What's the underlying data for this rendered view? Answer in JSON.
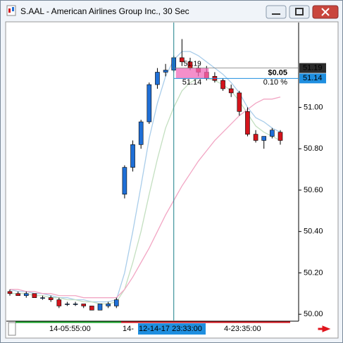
{
  "window": {
    "title": "S.AAL - American Airlines Group Inc., 30 Sec"
  },
  "chart_data": {
    "type": "candlestick",
    "ylim": [
      49.97,
      51.41
    ],
    "yticks": [
      {
        "value": 50,
        "label": "50.00"
      },
      {
        "value": 50.2,
        "label": "50.20"
      },
      {
        "value": 50.4,
        "label": "50.40"
      },
      {
        "value": 50.6,
        "label": "50.60"
      },
      {
        "value": 50.8,
        "label": "50.80"
      },
      {
        "value": 51,
        "label": "51.00"
      }
    ],
    "up_color": "#1f6fd6",
    "down_color": "#d4141c",
    "open": [
      50.11,
      50.1,
      50.09,
      50.1,
      50.08,
      50.08,
      50.07,
      50.05,
      50.05,
      50.05,
      50.04,
      50.02,
      50.04,
      50.04,
      50.58,
      50.71,
      50.82,
      50.93,
      51.11,
      51.17,
      51.18,
      51.24,
      51.22,
      51.19,
      51.17,
      51.15,
      51.13,
      51.09,
      51.07,
      50.98,
      50.87,
      50.84,
      50.86,
      50.88
    ],
    "high": [
      50.12,
      50.11,
      50.11,
      50.1,
      50.09,
      50.09,
      50.08,
      50.06,
      50.06,
      50.05,
      50.04,
      50.05,
      50.06,
      50.08,
      50.72,
      50.84,
      50.94,
      51.12,
      51.19,
      51.21,
      51.25,
      51.33,
      51.24,
      51.2,
      51.2,
      51.17,
      51.14,
      51.11,
      51.08,
      51.0,
      50.89,
      50.86,
      50.9,
      50.89
    ],
    "low": [
      50.09,
      50.09,
      50.08,
      50.08,
      50.07,
      50.06,
      50.03,
      50.04,
      50.04,
      50.03,
      50.02,
      50.02,
      50.03,
      50.03,
      50.56,
      50.69,
      50.8,
      50.92,
      51.09,
      51.15,
      51.17,
      51.2,
      51.18,
      51.15,
      51.13,
      51.12,
      51.08,
      51.05,
      50.96,
      50.86,
      50.83,
      50.8,
      50.85,
      50.82
    ],
    "close": [
      50.1,
      50.09,
      50.1,
      50.08,
      50.08,
      50.07,
      50.04,
      50.05,
      50.05,
      50.04,
      50.02,
      50.05,
      50.05,
      50.07,
      50.71,
      50.82,
      50.93,
      51.11,
      51.17,
      51.18,
      51.24,
      51.22,
      51.19,
      51.17,
      51.14,
      51.13,
      51.09,
      51.07,
      50.98,
      50.87,
      50.84,
      50.86,
      50.89,
      50.84
    ],
    "overlays": [
      {
        "color": "#a9cdea",
        "values": [
          50.12,
          50.11,
          50.11,
          50.1,
          50.1,
          50.09,
          50.08,
          50.08,
          50.07,
          50.07,
          50.06,
          50.06,
          50.06,
          50.07,
          50.2,
          50.4,
          50.62,
          50.85,
          51.02,
          51.15,
          51.23,
          51.27,
          51.27,
          51.25,
          51.22,
          51.19,
          51.16,
          51.12,
          51.07,
          51.0,
          50.95,
          50.93,
          50.9,
          50.88
        ]
      },
      {
        "color": "#c3dfc0",
        "values": [
          50.1,
          50.1,
          50.1,
          50.09,
          50.09,
          50.08,
          50.08,
          50.07,
          50.07,
          50.06,
          50.06,
          50.05,
          50.05,
          50.06,
          50.12,
          50.25,
          50.4,
          50.58,
          50.75,
          50.9,
          51.0,
          51.08,
          51.12,
          51.14,
          51.14,
          51.13,
          51.11,
          51.08,
          51.03,
          50.97,
          50.91,
          50.88,
          50.86,
          50.84
        ]
      },
      {
        "color": "#f2a6c4",
        "values": [
          50.12,
          50.12,
          50.11,
          50.11,
          50.1,
          50.1,
          50.09,
          50.09,
          50.09,
          50.08,
          50.08,
          50.08,
          50.08,
          50.08,
          50.12,
          50.18,
          50.25,
          50.32,
          50.4,
          50.48,
          50.55,
          50.62,
          50.68,
          50.74,
          50.79,
          50.84,
          50.88,
          50.92,
          50.96,
          50.99,
          51.02,
          51.04,
          51.04,
          51.05
        ]
      }
    ],
    "x_labels": [
      "14-05:55:00",
      "14-",
      "4-23:35:00"
    ],
    "crosshair": {
      "index": 20,
      "label": "12-14-17 23:33:00",
      "price": 51.14
    },
    "last_price": 51.19,
    "measure": {
      "from_index": 20,
      "to_index": 24,
      "from_price": 51.19,
      "to_price": 51.14,
      "change_label": "$0.05",
      "change_pct_label": "0.10 %"
    }
  }
}
